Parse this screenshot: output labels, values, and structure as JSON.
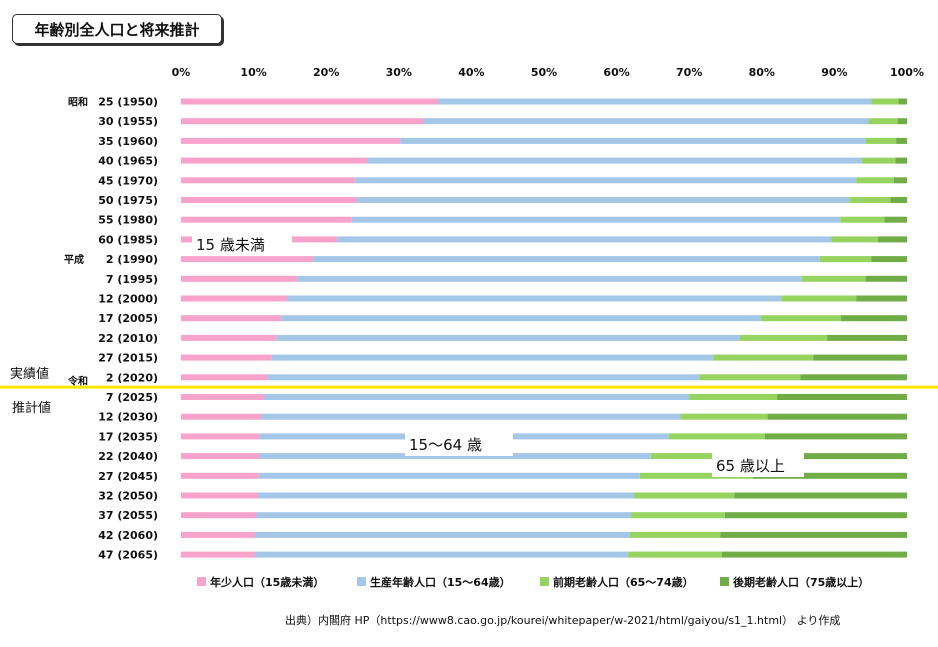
{
  "title": "年齢別全人口と将来推計",
  "source_note": "出典）内閣府 HP（https://www8.cao.go.jp/kourei/whitepaper/w-2021/html/gaiyou/s1_1.html） より作成",
  "divider_labels": {
    "actual": "実績値",
    "projected": "推計値"
  },
  "colors": {
    "youth": "#f7a3cc",
    "working": "#a4c7e8",
    "early_elderly": "#96d35f",
    "late_elderly": "#70ad47",
    "divider": "#ffe600"
  },
  "chart_data": {
    "type": "bar",
    "orientation": "horizontal",
    "stacked": true,
    "percent": true,
    "title": "年齢別全人口と将来推計",
    "x_ticks": [
      "0%",
      "10%",
      "20%",
      "30%",
      "40%",
      "50%",
      "60%",
      "70%",
      "80%",
      "90%",
      "100%"
    ],
    "xlim": [
      0,
      100
    ],
    "era_labels": [
      "昭和",
      "平成",
      "令和"
    ],
    "categories": [
      {
        "era": "昭和",
        "year": "25",
        "western": "(1950)"
      },
      {
        "era": "",
        "year": "30",
        "western": "(1955)"
      },
      {
        "era": "",
        "year": "35",
        "western": "(1960)"
      },
      {
        "era": "",
        "year": "40",
        "western": "(1965)"
      },
      {
        "era": "",
        "year": "45",
        "western": "(1970)"
      },
      {
        "era": "",
        "year": "50",
        "western": "(1975)"
      },
      {
        "era": "",
        "year": "55",
        "western": "(1980)"
      },
      {
        "era": "",
        "year": "60",
        "western": "(1985)"
      },
      {
        "era": "平成",
        "year": "2",
        "western": "(1990)"
      },
      {
        "era": "",
        "year": "7",
        "western": "(1995)"
      },
      {
        "era": "",
        "year": "12",
        "western": "(2000)"
      },
      {
        "era": "",
        "year": "17",
        "western": "(2005)"
      },
      {
        "era": "",
        "year": "22",
        "western": "(2010)"
      },
      {
        "era": "",
        "year": "27",
        "western": "(2015)"
      },
      {
        "era": "令和",
        "year": "2",
        "western": "(2020)"
      },
      {
        "era": "",
        "year": "7",
        "western": "(2025)"
      },
      {
        "era": "",
        "year": "12",
        "western": "(2030)"
      },
      {
        "era": "",
        "year": "17",
        "western": "(2035)"
      },
      {
        "era": "",
        "year": "22",
        "western": "(2040)"
      },
      {
        "era": "",
        "year": "27",
        "western": "(2045)"
      },
      {
        "era": "",
        "year": "32",
        "western": "(2050)"
      },
      {
        "era": "",
        "year": "37",
        "western": "(2055)"
      },
      {
        "era": "",
        "year": "42",
        "western": "(2060)"
      },
      {
        "era": "",
        "year": "47",
        "western": "(2065)"
      }
    ],
    "series": [
      {
        "name": "年少人口（15歳未満）",
        "key": "youth",
        "values": [
          35.4,
          33.4,
          30.2,
          25.7,
          24.0,
          24.3,
          23.5,
          21.5,
          18.2,
          16.0,
          14.6,
          13.8,
          13.2,
          12.5,
          11.9,
          11.5,
          11.1,
          10.8,
          10.8,
          10.7,
          10.6,
          10.4,
          10.2,
          10.2
        ]
      },
      {
        "name": "生産年齢人口（15〜64歳）",
        "key": "working",
        "values": [
          59.7,
          61.3,
          64.1,
          68.1,
          69.0,
          67.8,
          67.3,
          68.1,
          69.8,
          69.5,
          68.1,
          66.1,
          63.8,
          60.8,
          59.5,
          58.5,
          57.7,
          56.4,
          53.9,
          52.5,
          51.8,
          51.6,
          51.6,
          51.4
        ]
      },
      {
        "name": "前期老齢人口（65〜74歳）",
        "key": "early_elderly",
        "values": [
          3.7,
          4.0,
          4.2,
          4.6,
          5.2,
          5.6,
          6.1,
          6.4,
          7.1,
          8.8,
          10.3,
          11.0,
          12.0,
          13.8,
          13.9,
          12.1,
          12.0,
          13.2,
          14.2,
          15.6,
          13.8,
          12.9,
          12.5,
          12.9
        ]
      },
      {
        "name": "後期老齢人口（75歳以上）",
        "key": "late_elderly",
        "values": [
          1.2,
          1.3,
          1.5,
          1.6,
          1.8,
          2.3,
          3.1,
          4.0,
          4.9,
          5.7,
          7.0,
          9.1,
          11.0,
          12.9,
          14.7,
          17.9,
          19.2,
          19.6,
          21.1,
          21.2,
          23.8,
          25.1,
          25.7,
          25.5
        ]
      }
    ],
    "series_labels": [
      "15 歳未満",
      "15〜64 歳",
      "65 歳以上"
    ],
    "divider_after_index": 14,
    "legend_position": "bottom",
    "grid": false
  }
}
